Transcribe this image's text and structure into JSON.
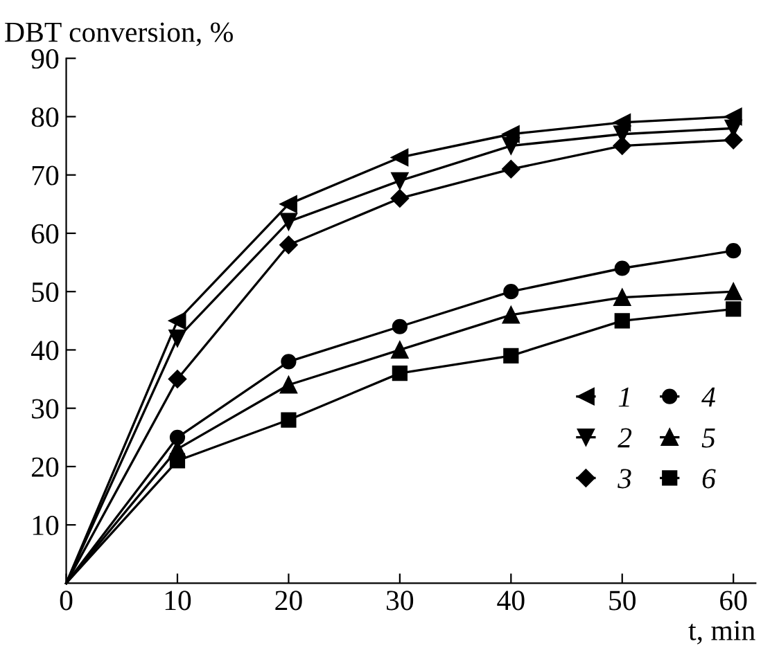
{
  "chart_data": {
    "type": "line",
    "xlabel": "t, min",
    "ylabel": "DBT conversion, %",
    "x": [
      0,
      10,
      20,
      30,
      40,
      50,
      60
    ],
    "xlim": [
      0,
      62
    ],
    "xticks": [
      0,
      10,
      20,
      30,
      40,
      50,
      60
    ],
    "ylim": [
      0,
      90
    ],
    "yticks": [
      10,
      20,
      30,
      40,
      50,
      60,
      70,
      80,
      90
    ],
    "grid": false,
    "legend": "bottom right",
    "series": [
      {
        "name": "1",
        "color": "#000000",
        "marker": "triangle_left",
        "values": [
          0,
          45,
          65,
          73,
          77,
          79,
          80
        ]
      },
      {
        "name": "2",
        "color": "#000000",
        "marker": "triangle_down",
        "values": [
          0,
          42,
          62,
          69,
          75,
          77,
          78
        ]
      },
      {
        "name": "3",
        "color": "#000000",
        "marker": "diamond",
        "values": [
          0,
          35,
          58,
          66,
          71,
          75,
          76
        ]
      },
      {
        "name": "4",
        "color": "#000000",
        "marker": "circle",
        "values": [
          0,
          25,
          38,
          44,
          50,
          54,
          57
        ]
      },
      {
        "name": "5",
        "color": "#000000",
        "marker": "triangle",
        "values": [
          0,
          23,
          34,
          40,
          46,
          49,
          50
        ]
      },
      {
        "name": "6",
        "color": "#000000",
        "marker": "square",
        "values": [
          0,
          21,
          28,
          36,
          39,
          45,
          47
        ]
      }
    ]
  }
}
